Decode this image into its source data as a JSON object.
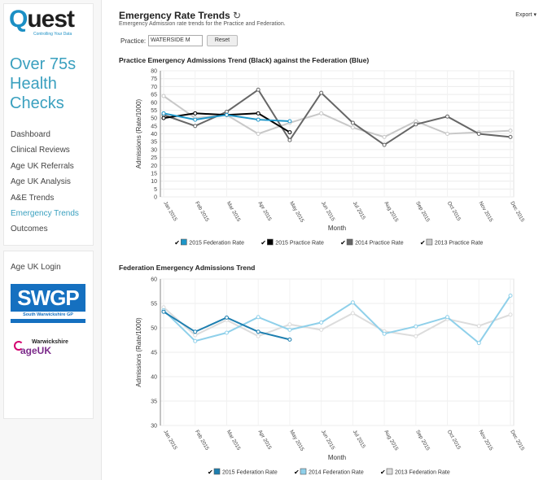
{
  "sidebar": {
    "logo_word": "uest",
    "logo_q": "Q",
    "logo_tagline": "Controlling Your Data",
    "app_title": "Over 75s Health Checks",
    "nav_items": [
      "Dashboard",
      "Clinical Reviews",
      "Age UK Referrals",
      "Age UK Analysis",
      "A&E Trends",
      "Emergency Trends",
      "Outcomes"
    ],
    "active_item": "Emergency Trends",
    "login_title": "Age UK Login",
    "swgp_big": "SWGP",
    "swgp_small": "South Warwickshire GP",
    "ageuk_top": "Warwickshire",
    "ageuk_main": "ageUK"
  },
  "header": {
    "title": "Emergency Rate Trends",
    "refresh_icon": "refresh-icon",
    "subtitle": "Emergency Admission rate trends for the Practice and Federation.",
    "export_label": "Export ▾",
    "practice_label": "Practice:",
    "practice_value": "WATERSIDE M",
    "reset_label": "Reset"
  },
  "chart_data": [
    {
      "type": "line",
      "title": "Practice Emergency Admissions Trend (Black) against the Federation (Blue)",
      "xlabel": "Month",
      "ylabel": "Admissions (Rate/1000)",
      "ylim": [
        0,
        80
      ],
      "yticks": [
        0,
        5,
        10,
        15,
        20,
        25,
        30,
        35,
        40,
        45,
        50,
        55,
        60,
        65,
        70,
        75,
        80
      ],
      "categories": [
        "Jan 2015",
        "Feb 2015",
        "Mar 2015",
        "Apr 2015",
        "May 2015",
        "Jun 2015",
        "Jul 2015",
        "Aug 2015",
        "Sep 2015",
        "Oct 2015",
        "Nov 2015",
        "Dec 2015"
      ],
      "series": [
        {
          "name": "2015 Federation Rate",
          "color": "#1e96c8",
          "values": [
            53,
            49,
            52,
            49,
            48,
            null,
            null,
            null,
            null,
            null,
            null,
            null
          ]
        },
        {
          "name": "2015 Practice Rate",
          "color": "#000000",
          "values": [
            50,
            53,
            52,
            53,
            41,
            null,
            null,
            null,
            null,
            null,
            null,
            null
          ]
        },
        {
          "name": "2014 Practice Rate",
          "color": "#666666",
          "values": [
            52,
            45,
            54,
            68,
            36,
            66,
            47,
            33,
            46,
            51,
            40,
            38
          ]
        },
        {
          "name": "2013 Practice Rate",
          "color": "#c8c8c8",
          "values": [
            64,
            50,
            52,
            40,
            47,
            53,
            44,
            38,
            48,
            40,
            41,
            42
          ]
        }
      ]
    },
    {
      "type": "line",
      "title": "Federation Emergency Admissions Trend",
      "xlabel": "Month",
      "ylabel": "Admissions (Rate/1000)",
      "ylim": [
        30,
        60
      ],
      "yticks": [
        30,
        35,
        40,
        45,
        50,
        55,
        60
      ],
      "categories": [
        "Jan 2015",
        "Feb 2015",
        "Mar 2015",
        "Apr 2015",
        "May 2015",
        "Jun 2015",
        "Jul 2015",
        "Aug 2015",
        "Sep 2015",
        "Oct 2015",
        "Nov 2015",
        "Dec 2015"
      ],
      "series": [
        {
          "name": "2015 Federation Rate",
          "color": "#1e7fb0",
          "values": [
            53.3,
            49.2,
            52.1,
            49.2,
            47.6,
            null,
            null,
            null,
            null,
            null,
            null,
            null
          ]
        },
        {
          "name": "2014 Federation Rate",
          "color": "#8fd0ea",
          "values": [
            53.6,
            47.3,
            49.0,
            52.2,
            49.6,
            51.1,
            55.2,
            48.8,
            50.3,
            52.2,
            46.9,
            56.6
          ]
        },
        {
          "name": "2013 Federation Rate",
          "color": "#dcdcdc",
          "values": [
            54.2,
            48.5,
            51.6,
            48.3,
            50.7,
            49.6,
            53.0,
            49.3,
            48.3,
            51.8,
            50.4,
            52.7
          ]
        }
      ]
    }
  ]
}
